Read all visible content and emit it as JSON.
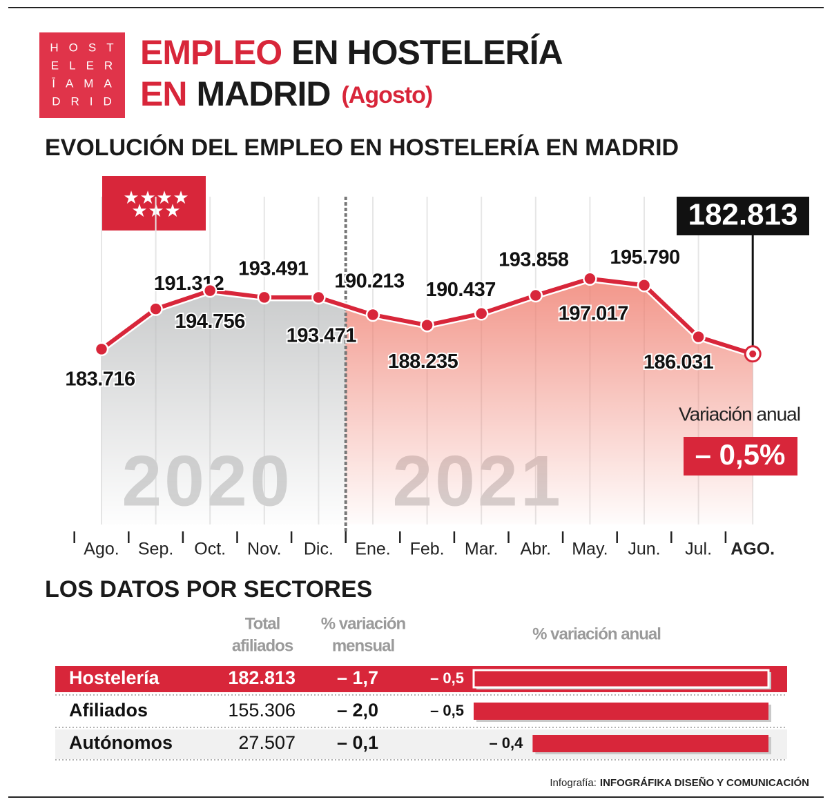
{
  "header": {
    "logo": [
      "HOST",
      "ELER",
      "ĪAMA",
      "DRID"
    ],
    "title_lines": [
      [
        {
          "text": "EMPLEO",
          "color": "#d8263a"
        },
        {
          "text": "EN HOSTELERÍA",
          "color": "#1a1a1a"
        }
      ],
      [
        {
          "text": "EN",
          "color": "#d8263a"
        },
        {
          "text": "MADRID",
          "color": "#1a1a1a"
        },
        {
          "text": "(Agosto)",
          "color": "#d8263a"
        }
      ]
    ]
  },
  "chart_data": [
    {
      "type": "line",
      "title": "EVOLUCIÓN DEL EMPLEO EN HOSTELERÍA EN MADRID",
      "categories": [
        "Ago.",
        "Sep.",
        "Oct.",
        "Nov.",
        "Dic.",
        "Ene.",
        "Feb.",
        "Mar.",
        "Abr.",
        "May.",
        "Jun.",
        "Jul.",
        "AGO."
      ],
      "values": [
        183716,
        191312,
        194756,
        193491,
        193471,
        190213,
        188235,
        190437,
        193858,
        197017,
        195790,
        186031,
        182813
      ],
      "value_labels": [
        "183.716",
        "191.312",
        "194.756",
        "193.491",
        "193.471",
        "190.213",
        "188.235",
        "190.437",
        "193.858",
        "197.017",
        "195.790",
        "186.031",
        "182.813"
      ],
      "ylim": [
        150600,
        212500
      ],
      "color": "#d8263a",
      "period_labels": [
        "2020",
        "2021"
      ],
      "annotation": {
        "label": "Variación anual",
        "value": -0.5,
        "value_label": "– 0,5%"
      }
    },
    {
      "type": "bar",
      "title": "LOS DATOS POR SECTORES",
      "value_title": "% variación anual",
      "categories": [
        "Hostelería",
        "Afiliados",
        "Autónomos"
      ],
      "values": [
        -0.5,
        -0.5,
        -0.4
      ],
      "value_labels": [
        "– 0,5",
        "– 0,5",
        "– 0,4"
      ],
      "xlim": [
        -0.5,
        0
      ],
      "color": "#d8263a",
      "columns": [
        {
          "header": [
            "Total",
            "afiliados"
          ],
          "cells": [
            "182.813",
            "155.306",
            "27.507"
          ]
        },
        {
          "header": [
            "% variación",
            "mensual"
          ],
          "cells": [
            "– 1,7",
            "– 2,0",
            "– 0,1"
          ]
        }
      ]
    }
  ],
  "footer": {
    "label": "Infografía:",
    "credit": "INFOGRÁFIKA DISEÑO Y COMUNICACIÓN"
  }
}
